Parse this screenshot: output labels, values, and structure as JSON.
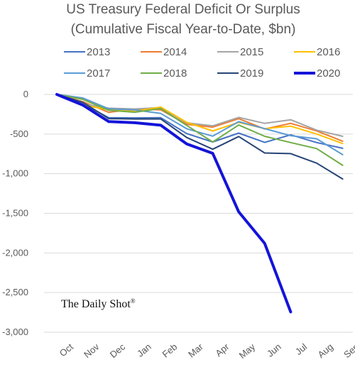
{
  "chart_data": {
    "type": "line",
    "title": [
      "US Treasury Federal Deficit Or Surplus",
      "(Cumulative Fiscal Year-to-Date, $bn)"
    ],
    "xlabel": "",
    "ylabel": "",
    "categories": [
      "Oct",
      "Nov",
      "Dec",
      "Jan",
      "Feb",
      "Mar",
      "Apr",
      "May",
      "Jun",
      "Jul",
      "Aug",
      "Sep"
    ],
    "ylim": [
      -3000,
      0
    ],
    "yticks": [
      0,
      -500,
      -1000,
      -1500,
      -2000,
      -2500,
      -3000
    ],
    "ytick_labels": [
      "0",
      "-500",
      "-1,000",
      "-1,500",
      "-2,000",
      "-2,500",
      "-3,000"
    ],
    "grid": "horizontal",
    "legend_position": "top",
    "watermark": "The Daily Shot",
    "watermark_mark": "®",
    "series": [
      {
        "name": "2013",
        "color": "#4472c4",
        "values": [
          0,
          -120,
          -293,
          -296,
          -294,
          -494,
          -600,
          -488,
          -605,
          -510,
          -607,
          -680
        ]
      },
      {
        "name": "2014",
        "color": "#ed7d31",
        "values": [
          0,
          -91,
          -227,
          -184,
          -194,
          -377,
          -413,
          -306,
          -436,
          -365,
          -460,
          -590
        ]
      },
      {
        "name": "2015",
        "color": "#a5a5a5",
        "values": [
          0,
          -122,
          -174,
          -184,
          -166,
          -358,
          -397,
          -290,
          -365,
          -320,
          -450,
          -528
        ]
      },
      {
        "name": "2016",
        "color": "#ffc000",
        "values": [
          0,
          -136,
          -192,
          -212,
          -159,
          -352,
          -461,
          -353,
          -432,
          -400,
          -500,
          -620
        ]
      },
      {
        "name": "2017",
        "color": "#5b9bd5",
        "values": [
          0,
          -45,
          -182,
          -196,
          -240,
          -433,
          -527,
          -344,
          -432,
          -520,
          -560,
          -760
        ]
      },
      {
        "name": "2018",
        "color": "#70ad47",
        "values": [
          0,
          -63,
          -201,
          -225,
          -178,
          -391,
          -600,
          -386,
          -528,
          -607,
          -683,
          -895
        ]
      },
      {
        "name": "2019",
        "color": "#264478",
        "values": [
          0,
          -100,
          -305,
          -310,
          -310,
          -544,
          -691,
          -531,
          -739,
          -747,
          -867,
          -1067
        ]
      },
      {
        "name": "2020",
        "color": "#1414d9",
        "values": [
          0,
          -134,
          -343,
          -357,
          -389,
          -625,
          -743,
          -1481,
          -1880,
          -2744,
          null,
          null
        ]
      }
    ]
  }
}
